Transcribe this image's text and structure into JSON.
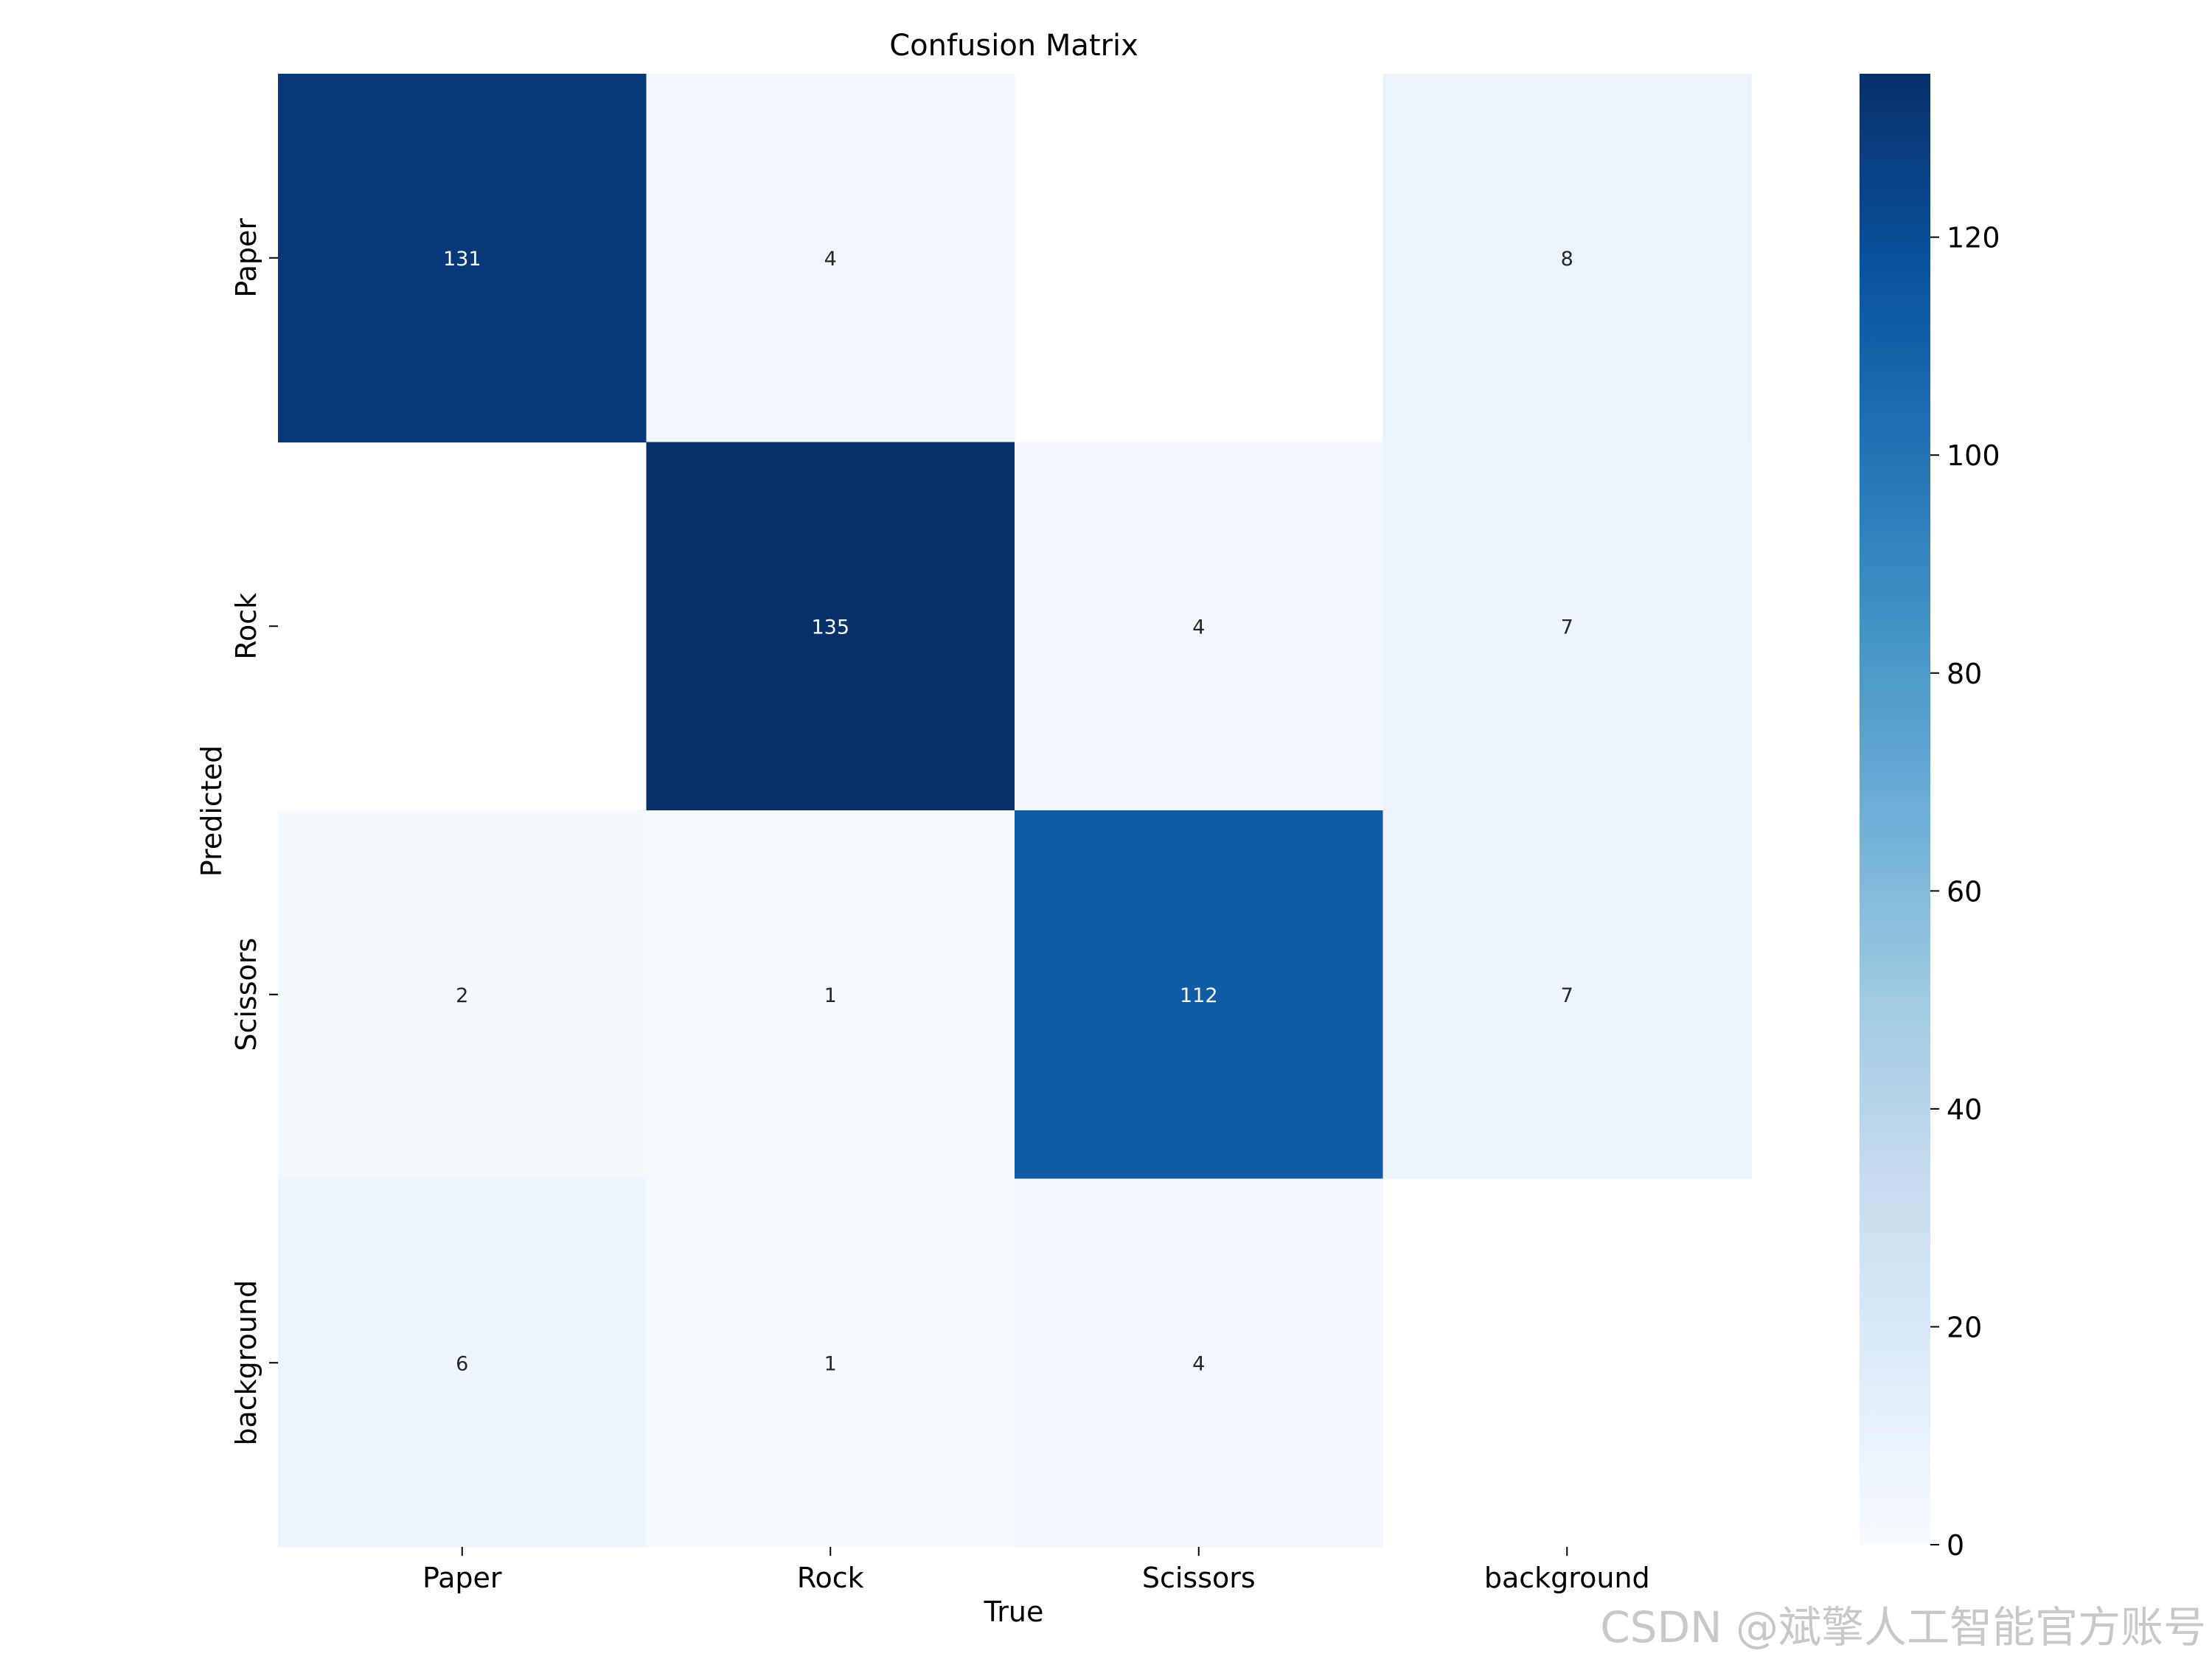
{
  "chart_data": {
    "type": "heatmap",
    "title": "Confusion Matrix",
    "xlabel": "True",
    "ylabel": "Predicted",
    "x_categories": [
      "Paper",
      "Rock",
      "Scissors",
      "background"
    ],
    "y_categories": [
      "Paper",
      "Rock",
      "Scissors",
      "background"
    ],
    "matrix": [
      [
        131,
        4,
        null,
        8
      ],
      [
        null,
        135,
        4,
        7
      ],
      [
        2,
        1,
        112,
        7
      ],
      [
        6,
        1,
        4,
        null
      ]
    ],
    "colormap": "Blues",
    "vmin": 0,
    "vmax": 135,
    "colorbar_ticks": [
      0,
      20,
      40,
      60,
      80,
      100,
      120
    ],
    "colorbar_tick_labels": [
      "0",
      "20",
      "40",
      "60",
      "80",
      "100",
      "120"
    ]
  },
  "watermark": "CSDN @斌擎人工智能官方账号"
}
